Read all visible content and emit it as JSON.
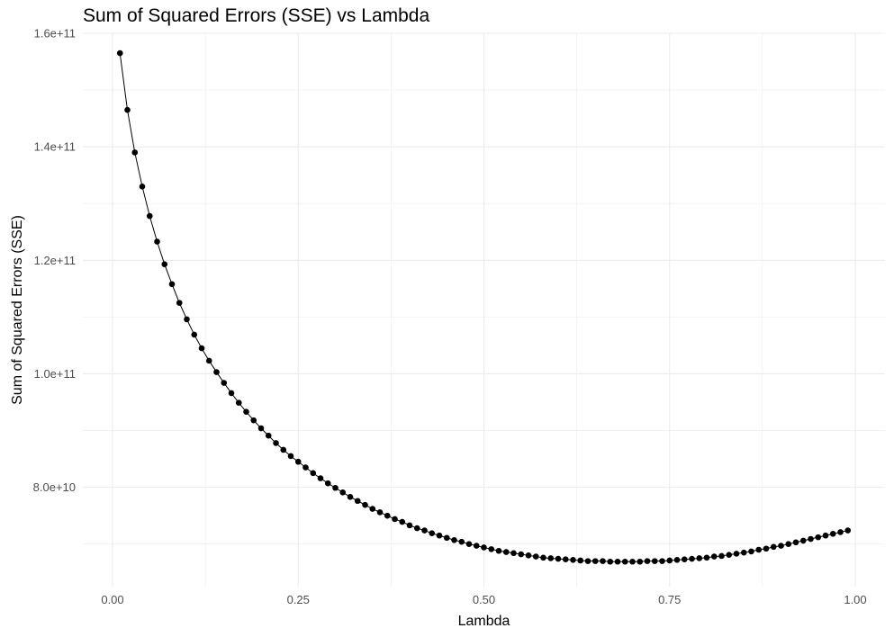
{
  "chart_data": {
    "type": "line",
    "title": "Sum of Squared Errors (SSE) vs Lambda",
    "xlabel": "Lambda",
    "ylabel": "Sum of Squared Errors (SSE)",
    "xlim": [
      -0.04,
      1.04
    ],
    "ylim": [
      62500000000,
      160000000000
    ],
    "x_ticks": [
      0.0,
      0.25,
      0.5,
      0.75,
      1.0
    ],
    "x_tick_labels": [
      "0.00",
      "0.25",
      "0.50",
      "0.75",
      "1.00"
    ],
    "y_ticks": [
      80000000000,
      100000000000,
      120000000000,
      140000000000,
      160000000000
    ],
    "y_tick_labels": [
      "8.0e+10",
      "1.0e+11",
      "1.2e+11",
      "1.4e+11",
      "1.6e+11"
    ],
    "grid": true,
    "legend": "none",
    "colors": {
      "line": "#000000",
      "point": "#000000",
      "grid": "#ebebeb"
    },
    "series": [
      {
        "x": [
          0.01,
          0.02,
          0.03,
          0.04,
          0.05,
          0.06,
          0.07,
          0.08,
          0.09,
          0.1,
          0.11,
          0.12,
          0.13,
          0.14,
          0.15,
          0.16,
          0.17,
          0.18,
          0.19,
          0.2,
          0.21,
          0.22,
          0.23,
          0.24,
          0.25,
          0.26,
          0.27,
          0.28,
          0.29,
          0.3,
          0.31,
          0.32,
          0.33,
          0.34,
          0.35,
          0.36,
          0.37,
          0.38,
          0.39,
          0.4,
          0.41,
          0.42,
          0.43,
          0.44,
          0.45,
          0.46,
          0.47,
          0.48,
          0.49,
          0.5,
          0.51,
          0.52,
          0.53,
          0.54,
          0.55,
          0.56,
          0.57,
          0.58,
          0.59,
          0.6,
          0.61,
          0.62,
          0.63,
          0.64,
          0.65,
          0.66,
          0.67,
          0.68,
          0.69,
          0.7,
          0.71,
          0.72,
          0.73,
          0.74,
          0.75,
          0.76,
          0.77,
          0.78,
          0.79,
          0.8,
          0.81,
          0.82,
          0.83,
          0.84,
          0.85,
          0.86,
          0.87,
          0.88,
          0.89,
          0.9,
          0.91,
          0.92,
          0.93,
          0.94,
          0.95,
          0.96,
          0.97,
          0.98,
          0.99
        ],
        "values": [
          156500000000.0,
          146500000000.0,
          139000000000.0,
          133000000000.0,
          127800000000.0,
          123300000000.0,
          119300000000.0,
          115800000000.0,
          112500000000.0,
          109600000000.0,
          106900000000.0,
          104500000000.0,
          102300000000.0,
          100300000000.0,
          98400000000.0,
          96600000000.0,
          94900000000.0,
          93300000000.0,
          91800000000.0,
          90400000000.0,
          89100000000.0,
          87800000000.0,
          86600000000.0,
          85500000000.0,
          84500000000.0,
          83500000000.0,
          82500000000.0,
          81600000000.0,
          80700000000.0,
          79900000000.0,
          79100000000.0,
          78300000000.0,
          77600000000.0,
          76900000000.0,
          76200000000.0,
          75600000000.0,
          75000000000.0,
          74400000000.0,
          73900000000.0,
          73300000000.0,
          72800000000.0,
          72400000000.0,
          71900000000.0,
          71500000000.0,
          71100000000.0,
          70700000000.0,
          70400000000.0,
          70000000000.0,
          69700000000.0,
          69400000000.0,
          69100000000.0,
          68800000000.0,
          68600000000.0,
          68400000000.0,
          68200000000.0,
          68000000000.0,
          67800000000.0,
          67600000000.0,
          67500000000.0,
          67400000000.0,
          67300000000.0,
          67200000000.0,
          67100000000.0,
          67000000000.0,
          67000000000.0,
          67000000000.0,
          66900000000.0,
          66900000000.0,
          66900000000.0,
          66900000000.0,
          66900000000.0,
          67000000000.0,
          67000000000.0,
          67000000000.0,
          67100000000.0,
          67200000000.0,
          67300000000.0,
          67400000000.0,
          67500000000.0,
          67600000000.0,
          67800000000.0,
          67900000000.0,
          68100000000.0,
          68300000000.0,
          68500000000.0,
          68700000000.0,
          69000000000.0,
          69200000000.0,
          69500000000.0,
          69700000000.0,
          70000000000.0,
          70300000000.0,
          70600000000.0,
          70900000000.0,
          71200000000.0,
          71500000000.0,
          71800000000.0,
          72100000000.0,
          72400000000.0
        ]
      }
    ]
  }
}
